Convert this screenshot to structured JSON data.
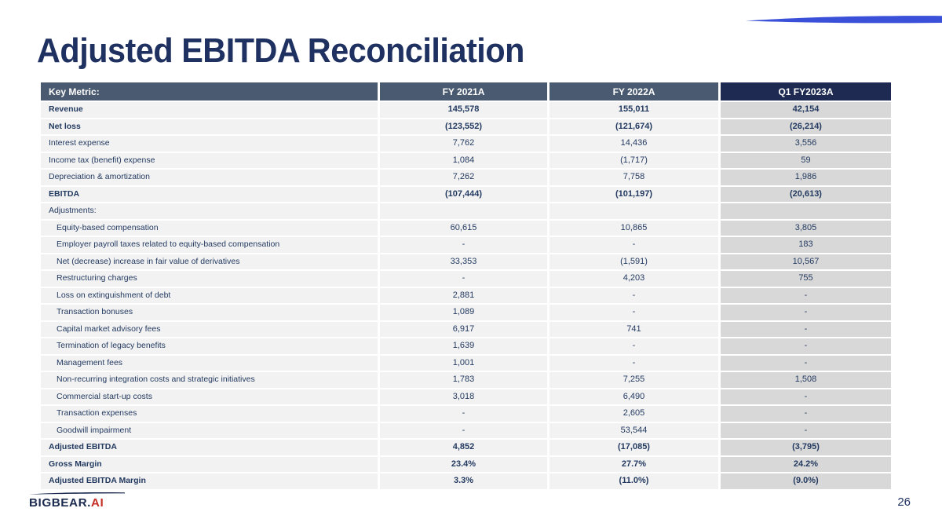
{
  "slide": {
    "title": "Adjusted EBITDA Reconciliation",
    "page_number": "26"
  },
  "logo": {
    "primary": "BIGBEAR.",
    "accent": "AI"
  },
  "colors": {
    "title_navy": "#1F3160",
    "header_slate": "#4A5A70",
    "header_navy": "#1E2A52",
    "row_bg": "#F2F2F2",
    "highlight_cell_bg": "#D8D8D8",
    "text_navy": "#233A60",
    "logo_navy": "#1B2A4E",
    "logo_red": "#C42F26",
    "swoosh_blue": "#3A50D8"
  },
  "table": {
    "columns": [
      {
        "label": "Key Metric:",
        "highlight": false
      },
      {
        "label": "FY 2021A",
        "highlight": false
      },
      {
        "label": "FY 2022A",
        "highlight": false
      },
      {
        "label": "Q1 FY2023A",
        "highlight": true
      }
    ],
    "rows": [
      {
        "label": "Revenue",
        "values": [
          "145,578",
          "155,011",
          "42,154"
        ],
        "bold": true,
        "indent": 0
      },
      {
        "label": "Net loss",
        "values": [
          "(123,552)",
          "(121,674)",
          "(26,214)"
        ],
        "bold": true,
        "indent": 0
      },
      {
        "label": "Interest expense",
        "values": [
          "7,762",
          "14,436",
          "3,556"
        ],
        "bold": false,
        "indent": 0
      },
      {
        "label": "Income tax (benefit) expense",
        "values": [
          "1,084",
          "(1,717)",
          "59"
        ],
        "bold": false,
        "indent": 0
      },
      {
        "label": "Depreciation & amortization",
        "values": [
          "7,262",
          "7,758",
          "1,986"
        ],
        "bold": false,
        "indent": 0
      },
      {
        "label": "EBITDA",
        "values": [
          "(107,444)",
          "(101,197)",
          "(20,613)"
        ],
        "bold": true,
        "indent": 0
      },
      {
        "label": "Adjustments:",
        "values": [
          "",
          "",
          ""
        ],
        "bold": false,
        "indent": 0
      },
      {
        "label": "Equity-based compensation",
        "values": [
          "60,615",
          "10,865",
          "3,805"
        ],
        "bold": false,
        "indent": 1
      },
      {
        "label": "Employer payroll taxes related to equity-based compensation",
        "values": [
          "-",
          "-",
          "183"
        ],
        "bold": false,
        "indent": 1
      },
      {
        "label": "Net (decrease) increase in fair value of derivatives",
        "values": [
          "33,353",
          "(1,591)",
          "10,567"
        ],
        "bold": false,
        "indent": 1
      },
      {
        "label": "Restructuring charges",
        "values": [
          "-",
          "4,203",
          "755"
        ],
        "bold": false,
        "indent": 1
      },
      {
        "label": "Loss on extinguishment of debt",
        "values": [
          "2,881",
          "-",
          "-"
        ],
        "bold": false,
        "indent": 1
      },
      {
        "label": "Transaction bonuses",
        "values": [
          "1,089",
          "-",
          "-"
        ],
        "bold": false,
        "indent": 1
      },
      {
        "label": "Capital market advisory fees",
        "values": [
          "6,917",
          "741",
          "-"
        ],
        "bold": false,
        "indent": 1
      },
      {
        "label": "Termination of legacy benefits",
        "values": [
          "1,639",
          "-",
          "-"
        ],
        "bold": false,
        "indent": 1
      },
      {
        "label": "Management fees",
        "values": [
          "1,001",
          "-",
          "-"
        ],
        "bold": false,
        "indent": 1
      },
      {
        "label": "Non-recurring integration costs and strategic initiatives",
        "values": [
          "1,783",
          "7,255",
          "1,508"
        ],
        "bold": false,
        "indent": 1
      },
      {
        "label": "Commercial start-up costs",
        "values": [
          "3,018",
          "6,490",
          "-"
        ],
        "bold": false,
        "indent": 1
      },
      {
        "label": "Transaction expenses",
        "values": [
          "-",
          "2,605",
          "-"
        ],
        "bold": false,
        "indent": 1
      },
      {
        "label": "Goodwill impairment",
        "values": [
          "-",
          "53,544",
          "-"
        ],
        "bold": false,
        "indent": 1
      },
      {
        "label": "Adjusted EBITDA",
        "values": [
          "4,852",
          "(17,085)",
          "(3,795)"
        ],
        "bold": true,
        "indent": 0
      },
      {
        "label": "Gross Margin",
        "values": [
          "23.4%",
          "27.7%",
          "24.2%"
        ],
        "bold": true,
        "indent": 0
      },
      {
        "label": "Adjusted EBITDA Margin",
        "values": [
          "3.3%",
          "(11.0%)",
          "(9.0%)"
        ],
        "bold": true,
        "indent": 0
      }
    ]
  }
}
